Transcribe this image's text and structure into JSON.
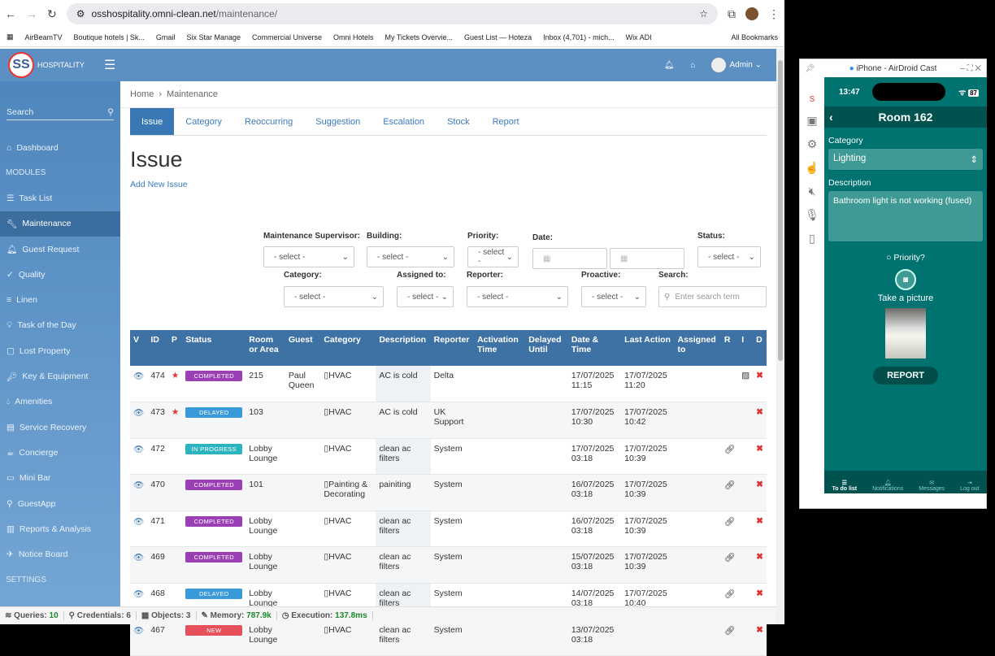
{
  "browser": {
    "url_host": "osshospitality.omni-clean.net",
    "url_path": "/maintenance/",
    "bookmarks": [
      "AirBeamTV",
      "Boutique hotels | Sk...",
      "Gmail",
      "Six Star Manage",
      "Commercial Universe",
      "Omni Hotels",
      "My Tickets Overvie...",
      "Guest List — Hoteza",
      "Inbox (4,701) - mich...",
      "Wix ADI"
    ],
    "all_bookmarks": "All Bookmarks"
  },
  "header": {
    "logo": "SS",
    "brand": "HOSPITALITY",
    "user": "Admin"
  },
  "sidebar": {
    "search": "Search",
    "modules_label": "MODULES",
    "settings_label": "SETTINGS",
    "dashboard": "Dashboard",
    "items": [
      "Task List",
      "Maintenance",
      "Guest Request",
      "Quality",
      "Linen",
      "Task of the Day",
      "Lost Property",
      "Key & Equipment",
      "Amenities",
      "Service Recovery",
      "Concierge",
      "Mini Bar",
      "GuestApp",
      "Reports & Analysis",
      "Notice Board"
    ],
    "active": "Maintenance"
  },
  "breadcrumb": [
    "Home",
    "Maintenance"
  ],
  "tabs": [
    "Issue",
    "Category",
    "Reoccurring",
    "Suggestion",
    "Escalation",
    "Stock",
    "Report"
  ],
  "page_title": "Issue",
  "add_new": "Add New Issue",
  "filters": {
    "maintenance_supervisor": "Maintenance Supervisor:",
    "building": "Building:",
    "priority": "Priority:",
    "date": "Date:",
    "status": "Status:",
    "category": "Category:",
    "assigned_to": "Assigned to:",
    "reporter": "Reporter:",
    "proactive": "Proactive:",
    "search": "Search:",
    "select": "- select -",
    "search_placeholder": "Enter search term"
  },
  "table": {
    "headers": [
      "V",
      "ID",
      "P",
      "Status",
      "Room or Area",
      "Guest",
      "Category",
      "Description",
      "Reporter",
      "Activation Time",
      "Delayed Until",
      "Date & Time",
      "Last Action",
      "Assigned to",
      "R",
      "I",
      "D"
    ],
    "rows": [
      {
        "id": "474",
        "p": true,
        "status": "COMPLETED",
        "room": "215",
        "guest": "Paul Queen",
        "category": "HVAC",
        "desc": "AC is cold",
        "reporter": "Delta",
        "datetime": "17/07/2025 11:15",
        "last": "17/07/2025 11:20",
        "r": false,
        "i": true
      },
      {
        "id": "473",
        "p": true,
        "status": "DELAYED",
        "room": "103",
        "guest": "",
        "category": "HVAC",
        "desc": "AC is cold",
        "reporter": "UK Support",
        "datetime": "17/07/2025 10:30",
        "last": "17/07/2025 10:42",
        "r": false,
        "i": false
      },
      {
        "id": "472",
        "p": false,
        "status": "IN PROGRESS",
        "room": "Lobby Lounge",
        "guest": "",
        "category": "HVAC",
        "desc": "clean ac filters",
        "reporter": "System",
        "datetime": "17/07/2025 03:18",
        "last": "17/07/2025 10:39",
        "r": true,
        "i": false
      },
      {
        "id": "470",
        "p": false,
        "status": "COMPLETED",
        "room": "101",
        "guest": "",
        "category": "Painting & Decorating",
        "desc": "painiting",
        "reporter": "System",
        "datetime": "16/07/2025 03:18",
        "last": "17/07/2025 10:39",
        "r": true,
        "i": false
      },
      {
        "id": "471",
        "p": false,
        "status": "COMPLETED",
        "room": "Lobby Lounge",
        "guest": "",
        "category": "HVAC",
        "desc": "clean ac filters",
        "reporter": "System",
        "datetime": "16/07/2025 03:18",
        "last": "17/07/2025 10:39",
        "r": true,
        "i": false
      },
      {
        "id": "469",
        "p": false,
        "status": "COMPLETED",
        "room": "Lobby Lounge",
        "guest": "",
        "category": "HVAC",
        "desc": "clean ac filters",
        "reporter": "System",
        "datetime": "15/07/2025 03:18",
        "last": "17/07/2025 10:39",
        "r": true,
        "i": false
      },
      {
        "id": "468",
        "p": false,
        "status": "DELAYED",
        "room": "Lobby Lounge",
        "guest": "",
        "category": "HVAC",
        "desc": "clean ac filters",
        "reporter": "System",
        "datetime": "14/07/2025 03:18",
        "last": "17/07/2025 10:40",
        "r": true,
        "i": false
      },
      {
        "id": "467",
        "p": false,
        "status": "NEW",
        "room": "Lobby Lounge",
        "guest": "",
        "category": "HVAC",
        "desc": "clean ac filters",
        "reporter": "System",
        "datetime": "13/07/2025 03:18",
        "last": "",
        "r": true,
        "i": false
      }
    ]
  },
  "status_colors": {
    "COMPLETED": "#9b3fb5",
    "DELAYED": "#3a9ad9",
    "IN PROGRESS": "#2bb3c0",
    "NEW": "#e5505a"
  },
  "statusbar": {
    "queries_label": "Queries:",
    "queries": "10",
    "credentials": "Credentials: 6",
    "objects": "Objects: 3",
    "memory_label": "Memory:",
    "memory": "787.9k",
    "execution_label": "Execution:",
    "execution": "137.8ms"
  },
  "phone": {
    "window_title": "iPhone - AirDroid Cast",
    "time": "13:47",
    "battery": "87",
    "title": "Room 162",
    "category_label": "Category",
    "category": "Lighting",
    "description_label": "Description",
    "description": "Bathroom light is not working (fused)",
    "priority": "Priority?",
    "take_picture": "Take a picture",
    "report": "REPORT",
    "tabs": [
      "To do list",
      "Notifications",
      "Messages",
      "Log out"
    ]
  }
}
